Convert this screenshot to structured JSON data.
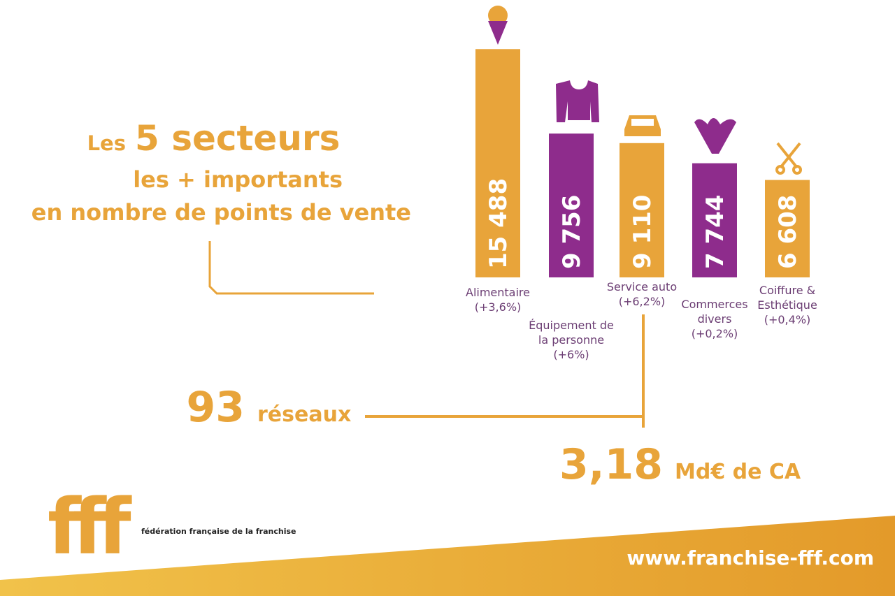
{
  "chart_data": {
    "type": "bar",
    "title": {
      "lead": "Les",
      "emphasis": "5 secteurs",
      "line2": "les + importants",
      "line3": "en nombre de points de vente"
    },
    "categories": [
      "Alimentaire",
      "Équipement de la personne",
      "Service auto",
      "Commerces divers",
      "Coiffure & Esthétique"
    ],
    "changes": [
      "(+3,6%)",
      "(+6%)",
      "(+6,2%)",
      "(+0,2%)",
      "(+0,4%)"
    ],
    "values": [
      15488,
      9756,
      9110,
      7744,
      6608
    ],
    "value_labels": [
      "15 488",
      "9 756",
      "9 110",
      "7 744",
      "6 608"
    ],
    "colors": [
      "#e8a43a",
      "#8e2c8c",
      "#e8a43a",
      "#8e2c8c",
      "#e8a43a"
    ],
    "ylim": [
      0,
      15500
    ]
  },
  "stats": [
    {
      "number": "93",
      "unit": "réseaux"
    },
    {
      "number": "3,18",
      "unit": "Md€ de CA"
    }
  ],
  "footer": {
    "logo": "fff",
    "organization": "fédération française de la franchise",
    "url": "www.franchise-fff.com"
  }
}
